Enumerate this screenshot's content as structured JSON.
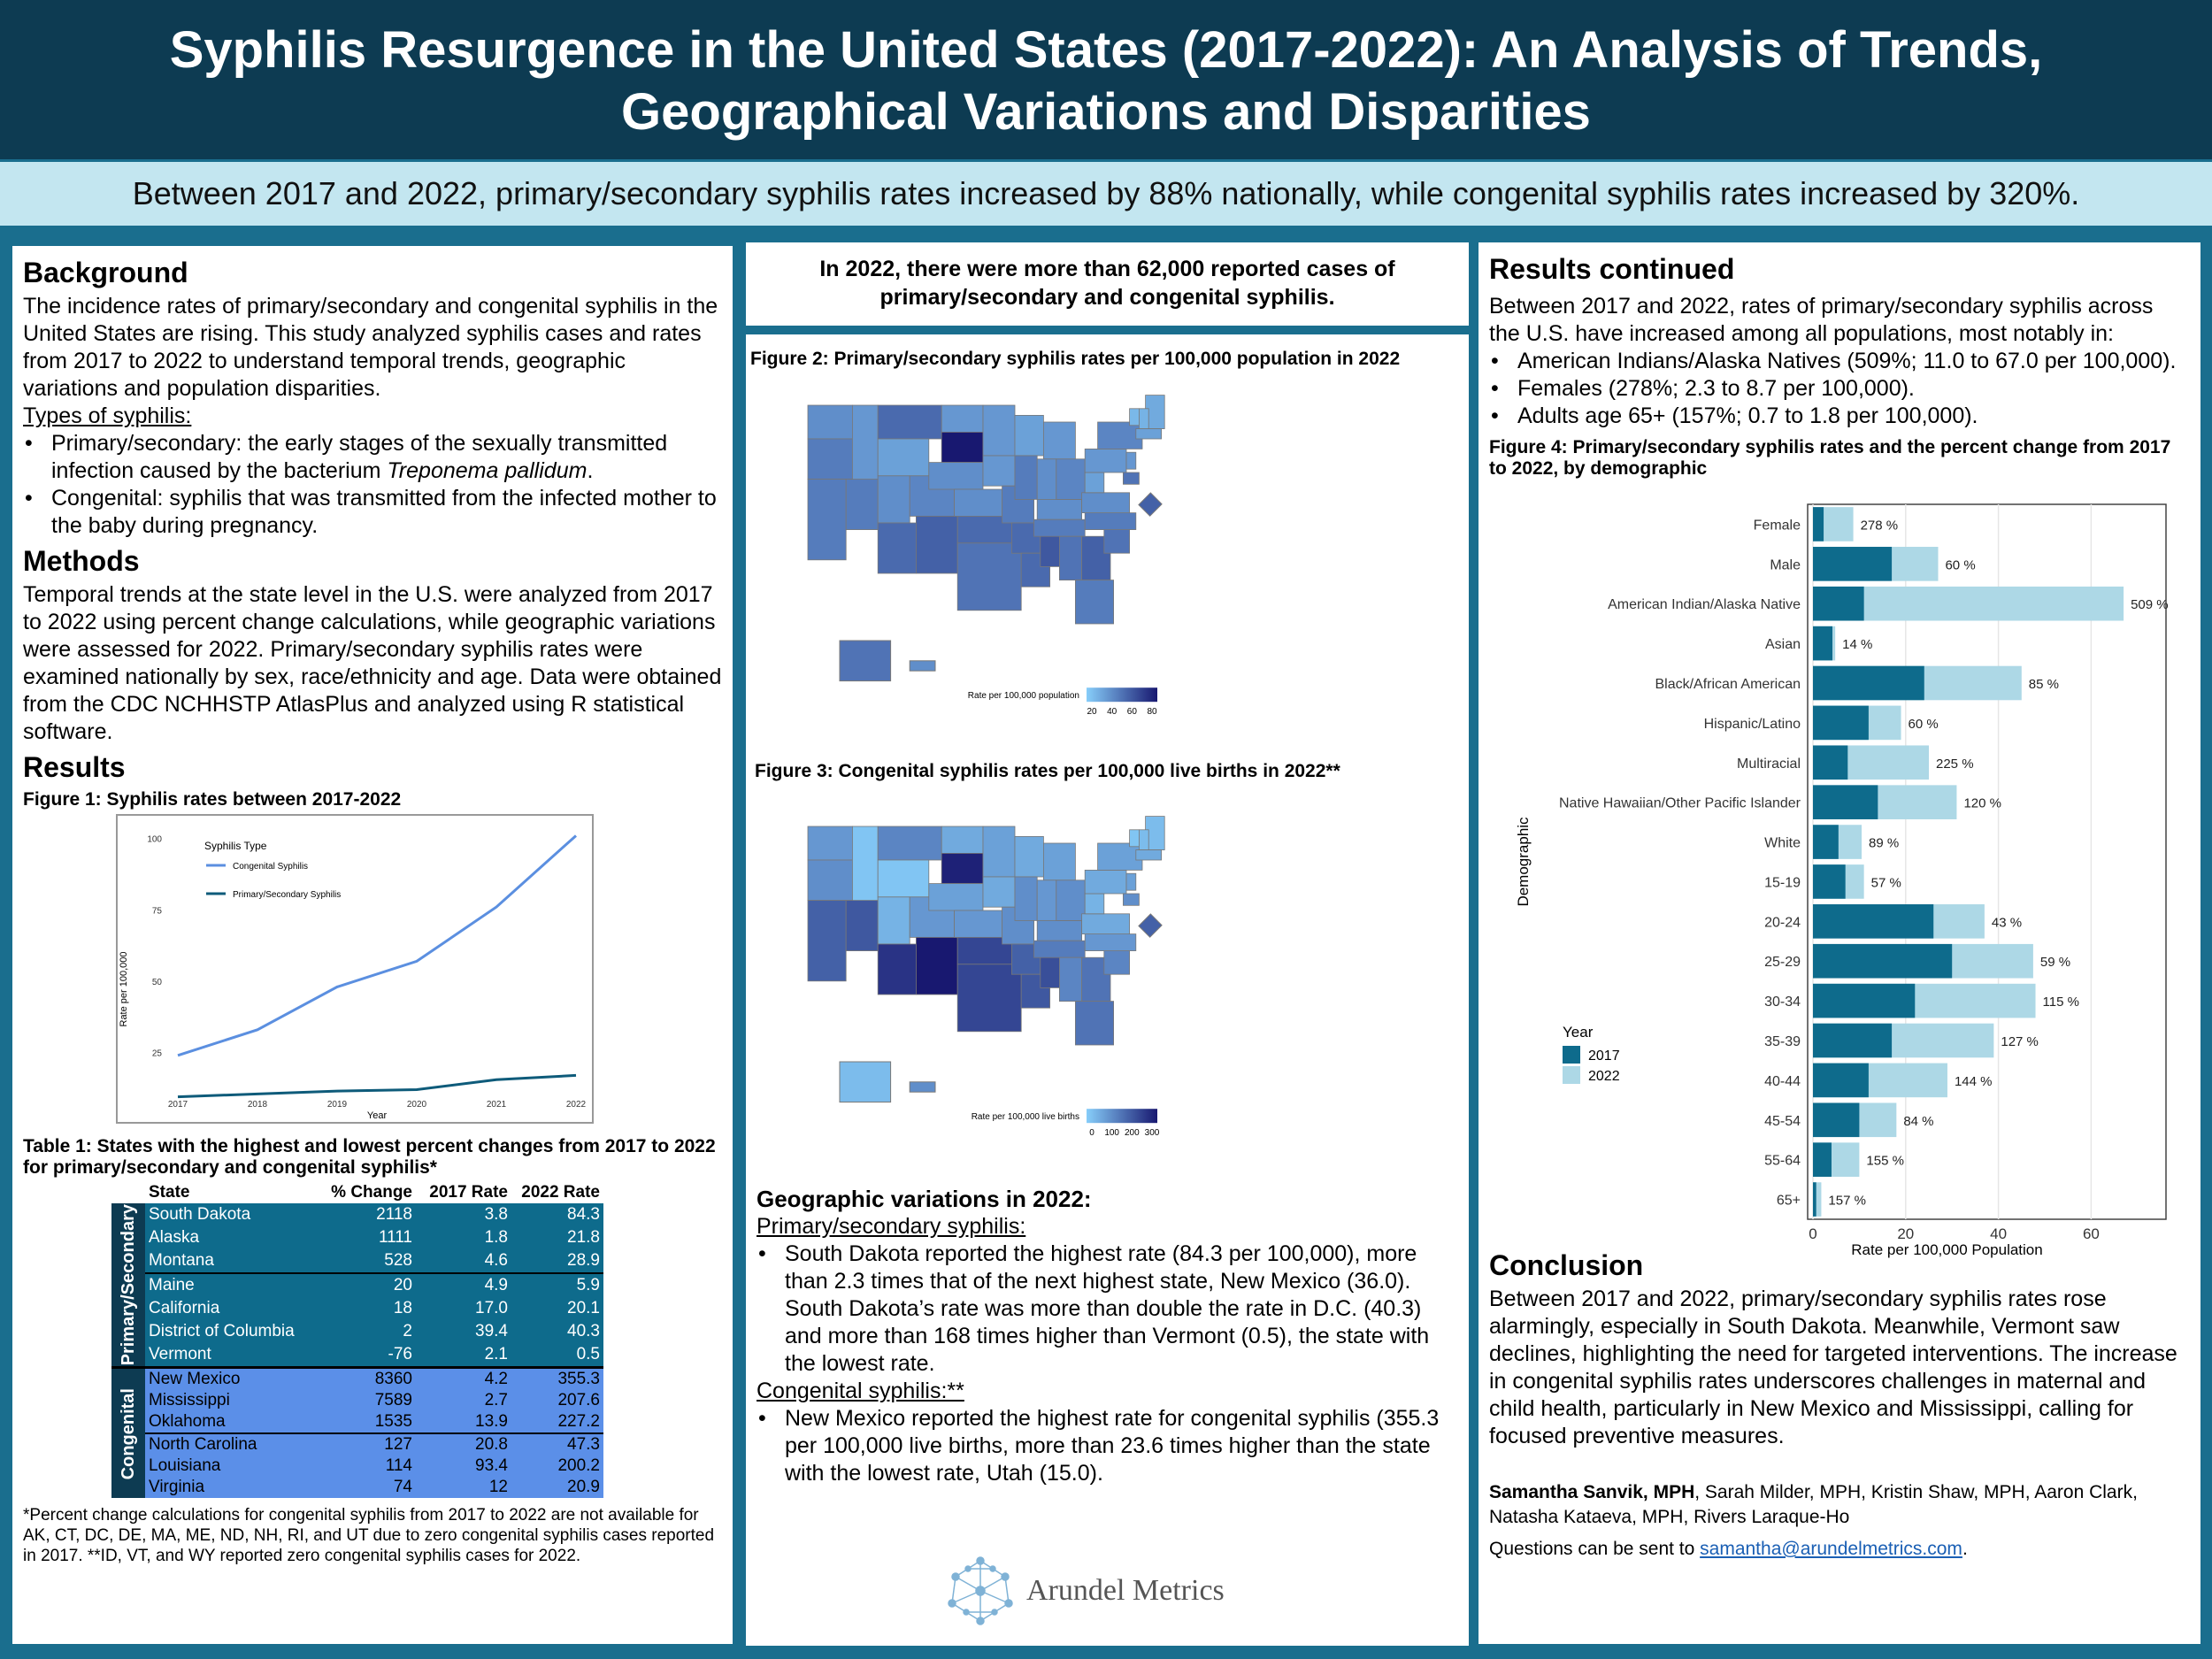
{
  "header": {
    "title_line1": "Syphilis Resurgence in the United States (2017-2022): An Analysis of Trends,",
    "title_line2": "Geographical Variations and Disparities",
    "subtitle": "Between 2017 and 2022, primary/secondary syphilis rates increased by 88% nationally, while congenital syphilis rates increased by 320%."
  },
  "background": {
    "heading": "Background",
    "text": "The incidence rates of primary/secondary and congenital syphilis in the United States are rising. This study analyzed syphilis cases and rates from 2017 to 2022 to understand temporal trends, geographic variations and population disparities.",
    "types_label": "Types of syphilis:",
    "type1_pre": "Primary/secondary: the early stages of the sexually transmitted infection caused by the bacterium ",
    "type1_italic": "Treponema pallidum",
    "type1_post": ".",
    "type2": "Congenital: syphilis that was transmitted from the infected mother to the baby during pregnancy."
  },
  "methods": {
    "heading": "Methods",
    "text": "Temporal trends at the state level in the U.S. were analyzed from 2017 to 2022 using percent change calculations, while geographic variations were assessed for 2022. Primary/secondary syphilis rates were examined nationally by sex, race/ethnicity and age. Data were obtained from the CDC NCHHSTP AtlasPlus and analyzed using R statistical software."
  },
  "results": {
    "heading": "Results",
    "fig1_caption": "Figure 1: Syphilis rates between 2017-2022",
    "table_caption": "Table 1: States with the highest and lowest percent changes from 2017 to 2022 for primary/secondary and congenital syphilis*",
    "table_headers": [
      "State",
      "% Change",
      "2017 Rate",
      "2022 Rate"
    ],
    "group_ps": "Primary/Secondary",
    "group_cong": "Congenital",
    "rows_ps": [
      [
        "South Dakota",
        "2118",
        "3.8",
        "84.3"
      ],
      [
        "Alaska",
        "1111",
        "1.8",
        "21.8"
      ],
      [
        "Montana",
        "528",
        "4.6",
        "28.9"
      ],
      [
        "Maine",
        "20",
        "4.9",
        "5.9"
      ],
      [
        "California",
        "18",
        "17.0",
        "20.1"
      ],
      [
        "District of Columbia",
        "2",
        "39.4",
        "40.3"
      ],
      [
        "Vermont",
        "-76",
        "2.1",
        "0.5"
      ]
    ],
    "rows_cong": [
      [
        "New Mexico",
        "8360",
        "4.2",
        "355.3"
      ],
      [
        "Mississippi",
        "7589",
        "2.7",
        "207.6"
      ],
      [
        "Oklahoma",
        "1535",
        "13.9",
        "227.2"
      ],
      [
        "North Carolina",
        "127",
        "20.8",
        "47.3"
      ],
      [
        "Louisiana",
        "114",
        "93.4",
        "200.2"
      ],
      [
        "Virginia",
        "74",
        "12",
        "20.9"
      ]
    ],
    "footnote": "*Percent change calculations for congenital syphilis from 2017 to 2022 are not available for AK, CT, DC, DE, MA, ME, ND, NH, RI, and UT due to zero congenital syphilis cases reported in 2017.   **ID, VT, and WY reported zero congenital syphilis cases for 2022."
  },
  "middle": {
    "callout": "In 2022, there were more than 62,000 reported cases of primary/secondary and congenital syphilis.",
    "fig2_caption": "Figure 2: Primary/secondary syphilis rates per 100,000 population in 2022",
    "fig2_legend_title": "Rate per 100,000 population",
    "fig2_legend_ticks": [
      "20",
      "40",
      "60",
      "80"
    ],
    "fig3_caption": "Figure 3: Congenital syphilis rates per 100,000 live births in 2022**",
    "fig3_legend_title": "Rate per 100,000 live births",
    "fig3_legend_ticks": [
      "0",
      "100",
      "200",
      "300"
    ],
    "geo_heading": "Geographic variations in 2022:",
    "ps_label": "Primary/secondary syphilis:",
    "ps_text": "South Dakota reported the highest rate (84.3 per 100,000), more than 2.3 times that of the next highest state, New Mexico (36.0). South Dakota’s rate was more than double the rate in D.C. (40.3) and more than 168 times higher than Vermont (0.5), the state with the lowest rate.",
    "cong_label": "Congenital syphilis:**",
    "cong_text": "New Mexico reported the highest rate for congenital syphilis (355.3 per 100,000 live births, more than 23.6 times higher than the state with the lowest rate, Utah (15.0).",
    "logo_text": "Arundel Metrics"
  },
  "results2": {
    "heading": "Results continued",
    "intro": "Between 2017 and 2022, rates of primary/secondary syphilis across the U.S. have increased among all populations, most notably in:",
    "bullets": [
      "American Indians/Alaska Natives (509%; 11.0 to 67.0 per 100,000).",
      "Females (278%; 2.3 to 8.7 per 100,000).",
      "Adults age 65+ (157%; 0.7 to 1.8 per 100,000)."
    ],
    "fig4_caption": "Figure 4: Primary/secondary syphilis rates and the percent change from 2017 to 2022, by demographic"
  },
  "conclusion": {
    "heading": "Conclusion",
    "text": "Between 2017 and 2022, primary/secondary syphilis rates rose alarmingly, especially in South Dakota. Meanwhile, Vermont saw declines, highlighting the need for targeted interventions. The increase in congenital syphilis rates underscores challenges in maternal and child health, particularly in New Mexico and Mississippi, calling for focused preventive measures.",
    "author_bold": "Samantha Sanvik, MPH",
    "authors_rest": ", Sarah Milder, MPH, Kristin Shaw, MPH, Aaron Clark, Natasha Kataeva, MPH, Rivers Laraque-Ho",
    "contact_pre": "Questions can be sent to ",
    "email": "samantha@arundelmetrics.com",
    "contact_post": "."
  },
  "colors": {
    "dark": "#0d3b52",
    "light": "#c3e6f0",
    "ps_2017": "#0e6b8c",
    "ps_2022": "#add8e6",
    "cong_line": "#5b8fe0",
    "ps_line": "#0e5b7a",
    "table_ps": "#0e6b8c",
    "table_cong": "#5b8fe8"
  },
  "chart_data": [
    {
      "type": "line",
      "title": "",
      "xlabel": "Year",
      "ylabel": "Rate per 100,000",
      "legend_title": "Syphilis Type",
      "legend_position": "top-left",
      "x": [
        "2017",
        "2018",
        "2019",
        "2020",
        "2021",
        "2022"
      ],
      "yticks": [
        "25",
        "50",
        "75",
        "100"
      ],
      "ylim": [
        10,
        103
      ],
      "series": [
        {
          "name": "Congenital Syphilis",
          "values": [
            24,
            33,
            48,
            57,
            76,
            101
          ]
        },
        {
          "name": "Primary/Secondary Syphilis",
          "values": [
            9.5,
            10.5,
            11.5,
            12,
            15.5,
            17
          ]
        }
      ]
    },
    {
      "type": "bar",
      "title": "",
      "xlabel": "Rate per 100,000 Population",
      "ylabel": "Demographic",
      "legend_title": "Year",
      "legend_position": "left",
      "xlim": [
        0,
        75
      ],
      "xticks": [
        "0",
        "20",
        "40",
        "60"
      ],
      "categories": [
        "Female",
        "Male",
        "American Indian/Alaska Native",
        "Asian",
        "Black/African American",
        "Hispanic/Latino",
        "Multiracial",
        "Native Hawaiian/Other Pacific Islander",
        "White",
        "15-19",
        "20-24",
        "25-29",
        "30-34",
        "35-39",
        "40-44",
        "45-54",
        "55-64",
        "65+"
      ],
      "series": [
        {
          "name": "2017",
          "values": [
            2.3,
            17,
            11,
            4.2,
            24,
            12,
            7.5,
            14,
            5.5,
            7,
            26,
            30,
            22,
            17,
            12,
            10,
            4,
            0.7
          ]
        },
        {
          "name": "2022",
          "values": [
            8.7,
            27,
            67,
            4.8,
            45,
            19,
            25,
            31,
            10.5,
            11,
            37,
            47.5,
            48,
            39,
            29,
            18,
            10,
            1.8
          ]
        }
      ],
      "labels": [
        "278 %",
        "60 %",
        "509 %",
        "14 %",
        "85 %",
        "60 %",
        "225 %",
        "120 %",
        "89 %",
        "57 %",
        "43 %",
        "59 %",
        "115 %",
        "127 %",
        "144 %",
        "84 %",
        "155 %",
        "157 %"
      ]
    }
  ]
}
